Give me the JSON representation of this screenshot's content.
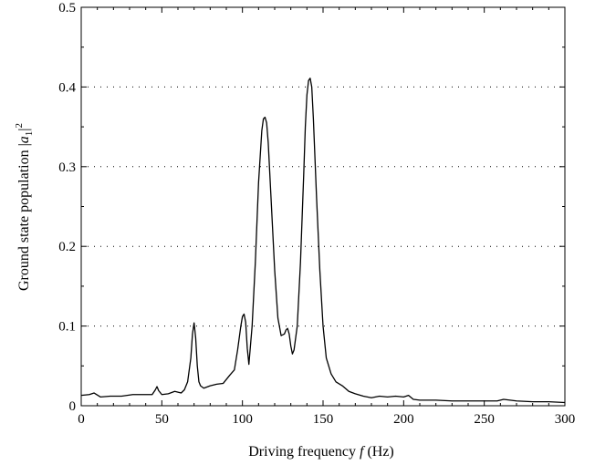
{
  "chart_data": {
    "type": "line",
    "title": "",
    "xlabel": "Driving frequency f (Hz)",
    "xlabel_parts": {
      "prefix": "Driving frequency ",
      "symbol": "f",
      "suffix": " (Hz)"
    },
    "ylabel": "Ground state population |a1|2",
    "ylabel_parts": {
      "prefix": "Ground state population |",
      "symbol": "a",
      "subscript": "1",
      "suffix": "|",
      "superscript": "2"
    },
    "xlim": [
      0,
      300
    ],
    "ylim": [
      0,
      0.5
    ],
    "xticks": [
      0,
      50,
      100,
      150,
      200,
      250,
      300
    ],
    "xtick_labels": [
      "0",
      "50",
      "100",
      "150",
      "200",
      "250",
      "300"
    ],
    "yticks": [
      0,
      0.1,
      0.2,
      0.3,
      0.4,
      0.5
    ],
    "ytick_labels": [
      "0",
      "0.1",
      "0.2",
      "0.3",
      "0.4",
      "0.5"
    ],
    "grid": "horizontal dotted",
    "legend": "none",
    "series": [
      {
        "color": "#000000",
        "x": [
          0,
          5,
          8,
          12,
          18,
          25,
          32,
          38,
          44,
          46,
          47,
          48,
          50,
          54,
          58,
          62,
          64,
          66,
          68,
          69,
          70,
          71,
          72,
          73,
          74,
          76,
          80,
          84,
          88,
          92,
          95,
          97,
          99,
          100,
          101,
          102,
          103,
          104,
          106,
          108,
          110,
          112,
          113,
          114,
          115,
          116,
          118,
          120,
          122,
          124,
          126,
          127,
          128,
          129,
          130,
          131,
          132,
          134,
          136,
          138,
          139,
          140,
          141,
          142,
          143,
          144,
          146,
          148,
          150,
          152,
          155,
          158,
          162,
          166,
          170,
          175,
          180,
          185,
          190,
          195,
          200,
          203,
          206,
          210,
          220,
          230,
          240,
          250,
          258,
          262,
          270,
          280,
          290,
          300
        ],
        "y": [
          0.013,
          0.014,
          0.016,
          0.011,
          0.012,
          0.012,
          0.014,
          0.014,
          0.014,
          0.02,
          0.024,
          0.019,
          0.014,
          0.015,
          0.018,
          0.016,
          0.02,
          0.03,
          0.06,
          0.09,
          0.104,
          0.085,
          0.05,
          0.03,
          0.025,
          0.022,
          0.025,
          0.027,
          0.028,
          0.038,
          0.045,
          0.07,
          0.1,
          0.112,
          0.115,
          0.105,
          0.072,
          0.052,
          0.1,
          0.18,
          0.28,
          0.345,
          0.36,
          0.362,
          0.355,
          0.33,
          0.25,
          0.17,
          0.11,
          0.088,
          0.09,
          0.095,
          0.097,
          0.09,
          0.075,
          0.065,
          0.07,
          0.1,
          0.18,
          0.29,
          0.35,
          0.39,
          0.408,
          0.411,
          0.4,
          0.36,
          0.26,
          0.17,
          0.1,
          0.06,
          0.04,
          0.03,
          0.025,
          0.018,
          0.015,
          0.012,
          0.01,
          0.012,
          0.011,
          0.012,
          0.011,
          0.013,
          0.008,
          0.007,
          0.007,
          0.006,
          0.006,
          0.006,
          0.006,
          0.008,
          0.006,
          0.005,
          0.005,
          0.004
        ]
      }
    ]
  }
}
